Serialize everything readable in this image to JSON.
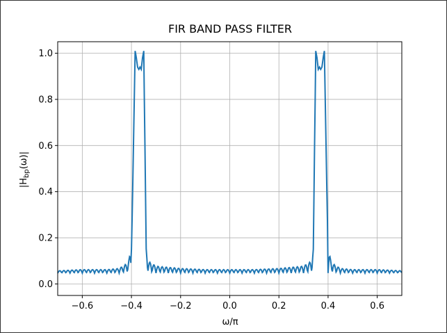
{
  "chart_data": {
    "type": "line",
    "title": "FIR BAND PASS FILTER",
    "xlabel_base": "ω/π",
    "ylabel": "|H",
    "ylabel_sub": "bp",
    "ylabel_tail": "(ω)|",
    "xlim": [
      -0.7,
      0.7
    ],
    "ylim": [
      -0.05,
      1.05
    ],
    "xticks": [
      -0.6,
      -0.4,
      -0.2,
      0.0,
      0.2,
      0.4,
      0.6
    ],
    "xtick_labels": [
      "−0.6",
      "−0.4",
      "−0.2",
      "0.0",
      "0.2",
      "0.4",
      "0.6"
    ],
    "yticks": [
      0.0,
      0.2,
      0.4,
      0.6,
      0.8,
      1.0
    ],
    "ytick_labels": [
      "0.0",
      "0.2",
      "0.4",
      "0.6",
      "0.8",
      "1.0"
    ],
    "grid": true,
    "series": [
      {
        "color": "#1f77b4",
        "x": [
          -0.7,
          -0.6,
          -0.5,
          -0.45,
          -0.42,
          -0.41,
          -0.4,
          -0.395,
          -0.385,
          -0.38,
          -0.375,
          -0.37,
          -0.365,
          -0.36,
          -0.355,
          -0.35,
          -0.345,
          -0.34,
          -0.33,
          -0.3,
          -0.2,
          -0.1,
          0.0,
          0.1,
          0.2,
          0.3,
          0.33,
          0.34,
          0.345,
          0.35,
          0.355,
          0.36,
          0.365,
          0.37,
          0.375,
          0.38,
          0.385,
          0.395,
          0.4,
          0.41,
          0.42,
          0.45,
          0.5,
          0.6,
          0.7
        ],
        "y": [
          0.05,
          0.055,
          0.055,
          0.06,
          0.08,
          0.1,
          0.15,
          0.4,
          1.01,
          0.98,
          0.94,
          0.93,
          0.94,
          0.93,
          0.98,
          1.01,
          0.6,
          0.15,
          0.09,
          0.07,
          0.06,
          0.055,
          0.055,
          0.055,
          0.06,
          0.07,
          0.09,
          0.15,
          0.6,
          1.01,
          0.98,
          0.93,
          0.94,
          0.93,
          0.94,
          0.98,
          1.01,
          0.4,
          0.15,
          0.1,
          0.08,
          0.06,
          0.055,
          0.055,
          0.05
        ]
      }
    ]
  }
}
